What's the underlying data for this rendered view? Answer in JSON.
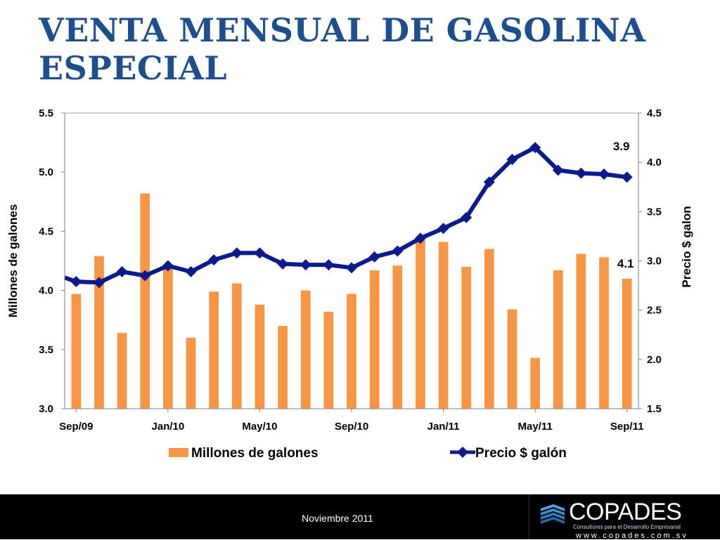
{
  "slide": {
    "title_line1": "VENTA MENSUAL DE GASOLINA",
    "title_line2": "ESPECIAL",
    "footer_date": "Noviembre 2011",
    "logo": {
      "name": "COPADES",
      "tagline": "Consultores para el Desarrollo Empresarial",
      "url": "www.copades.com.sv"
    }
  },
  "chart_data": {
    "type": "bar",
    "title": "",
    "categories": [
      "Sep/09",
      "Oct/09",
      "Nov/09",
      "Dec/09",
      "Jan/10",
      "Feb/10",
      "Mar/10",
      "Apr/10",
      "May/10",
      "Jun/10",
      "Jul/10",
      "Aug/10",
      "Sep/10",
      "Oct/10",
      "Nov/10",
      "Dec/10",
      "Jan/11",
      "Feb/11",
      "Mar/11",
      "Apr/11",
      "May/11",
      "Jun/11",
      "Jul/11",
      "Aug/11",
      "Sep/11"
    ],
    "x_tick_labels": [
      "Sep/09",
      "Jan/10",
      "May/10",
      "Sep/10",
      "Jan/11",
      "May/11",
      "Sep/11"
    ],
    "series": [
      {
        "name": "Millones de galones",
        "type": "bar",
        "axis": "left",
        "color": "#f79646",
        "values": [
          3.97,
          4.29,
          3.64,
          4.82,
          4.22,
          3.6,
          3.99,
          4.06,
          3.88,
          3.7,
          4.0,
          3.82,
          3.97,
          4.17,
          4.21,
          4.43,
          4.41,
          4.2,
          4.35,
          3.84,
          3.43,
          4.17,
          4.31,
          4.28,
          4.1
        ]
      },
      {
        "name": "Precio $ galón",
        "type": "line",
        "axis": "right",
        "color": "#0d1a8c",
        "values": [
          2.79,
          2.78,
          2.89,
          2.85,
          2.95,
          2.89,
          3.01,
          3.08,
          3.08,
          2.97,
          2.96,
          2.96,
          2.93,
          3.04,
          3.1,
          3.23,
          3.33,
          3.44,
          3.8,
          4.03,
          4.15,
          3.92,
          3.89,
          3.88,
          3.85
        ]
      }
    ],
    "data_labels": [
      {
        "text": "3.9",
        "series": "Precio $ galón",
        "index": 24
      },
      {
        "text": "4.1",
        "series": "Millones de galones",
        "index": 24
      }
    ],
    "left_axis": {
      "label": "Millones de galones",
      "min": 3.0,
      "max": 5.5,
      "ticks": [
        "3.0",
        "3.5",
        "4.0",
        "4.5",
        "5.0",
        "5.5"
      ]
    },
    "right_axis": {
      "label": "Precio $ galon",
      "min": 1.5,
      "max": 4.5,
      "ticks": [
        "1.5",
        "2.0",
        "2.5",
        "3.0",
        "3.5",
        "4.0",
        "4.5"
      ]
    },
    "legend_position": "bottom",
    "grid": false
  }
}
